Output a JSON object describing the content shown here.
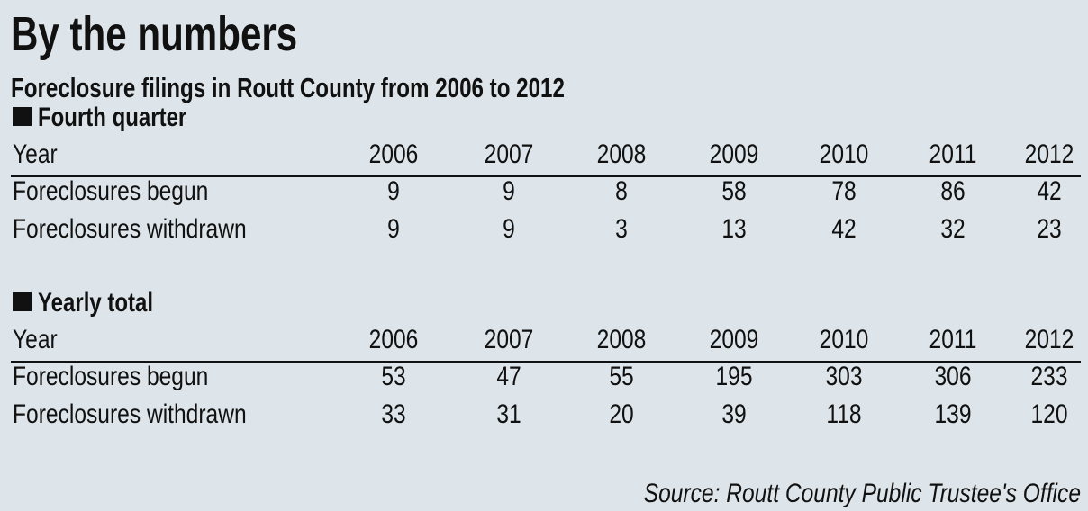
{
  "title": "By the numbers",
  "subtitle": "Foreclosure filings in Routt County from 2006 to 2012",
  "sections": [
    {
      "heading": "Fourth quarter",
      "header": [
        "Year",
        "2006",
        "2007",
        "2008",
        "2009",
        "2010",
        "2011",
        "2012"
      ],
      "rows": [
        [
          "Foreclosures begun",
          9,
          9,
          8,
          58,
          78,
          86,
          42
        ],
        [
          "Foreclosures withdrawn",
          9,
          9,
          3,
          13,
          42,
          32,
          23
        ]
      ]
    },
    {
      "heading": "Yearly total",
      "header": [
        "Year",
        "2006",
        "2007",
        "2008",
        "2009",
        "2010",
        "2011",
        "2012"
      ],
      "rows": [
        [
          "Foreclosures begun",
          53,
          47,
          55,
          195,
          303,
          306,
          233
        ],
        [
          "Foreclosures withdrawn",
          33,
          31,
          20,
          39,
          118,
          139,
          120
        ]
      ]
    }
  ],
  "source": "Source: Routt County Public Trustee's Office"
}
